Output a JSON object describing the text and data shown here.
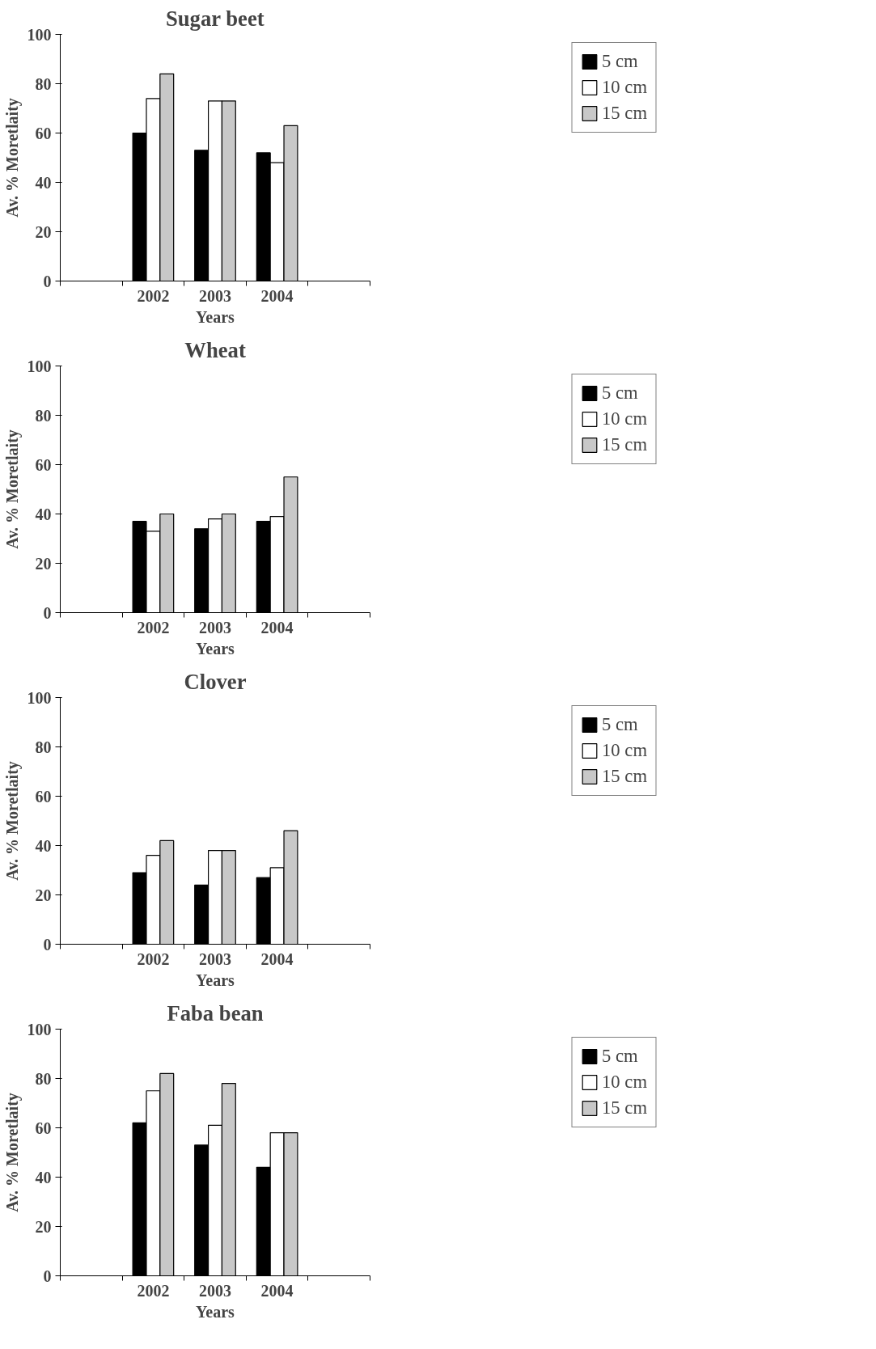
{
  "chart_data": [
    {
      "type": "bar",
      "title": "Sugar beet",
      "xlabel": "Years",
      "ylabel": "Av. % Moretlaity",
      "categories": [
        null,
        "2002",
        "2003",
        "2004",
        null
      ],
      "ylim": [
        0,
        100
      ],
      "yticks": [
        0,
        20,
        40,
        60,
        80,
        100
      ],
      "grid": false,
      "legend": "top right",
      "series": [
        {
          "name": "5 cm",
          "color": "#000000",
          "values": [
            null,
            60,
            53,
            52,
            null
          ]
        },
        {
          "name": "10 cm",
          "color": "#ffffff",
          "values": [
            null,
            74,
            73,
            48,
            null
          ]
        },
        {
          "name": "15 cm",
          "color": "#c8c8c8",
          "values": [
            null,
            84,
            73,
            63,
            null
          ]
        }
      ]
    },
    {
      "type": "bar",
      "title": "Wheat",
      "xlabel": "Years",
      "ylabel": "Av. % Moretlaity",
      "categories": [
        null,
        "2002",
        "2003",
        "2004",
        null
      ],
      "ylim": [
        0,
        100
      ],
      "yticks": [
        0,
        20,
        40,
        60,
        80,
        100
      ],
      "grid": false,
      "legend": "top right",
      "series": [
        {
          "name": "5 cm",
          "color": "#000000",
          "values": [
            null,
            37,
            34,
            37,
            null
          ]
        },
        {
          "name": "10 cm",
          "color": "#ffffff",
          "values": [
            null,
            33,
            38,
            39,
            null
          ]
        },
        {
          "name": "15 cm",
          "color": "#c8c8c8",
          "values": [
            null,
            40,
            40,
            55,
            null
          ]
        }
      ]
    },
    {
      "type": "bar",
      "title": "Clover",
      "xlabel": "Years",
      "ylabel": "Av. % Moretlaity",
      "categories": [
        null,
        "2002",
        "2003",
        "2004",
        null
      ],
      "ylim": [
        0,
        100
      ],
      "yticks": [
        0,
        20,
        40,
        60,
        80,
        100
      ],
      "grid": false,
      "legend": "top right",
      "series": [
        {
          "name": "5 cm",
          "color": "#000000",
          "values": [
            null,
            29,
            24,
            27,
            null
          ]
        },
        {
          "name": "10 cm",
          "color": "#ffffff",
          "values": [
            null,
            36,
            38,
            31,
            null
          ]
        },
        {
          "name": "15 cm",
          "color": "#c8c8c8",
          "values": [
            null,
            42,
            38,
            46,
            null
          ]
        }
      ]
    },
    {
      "type": "bar",
      "title": "Faba bean",
      "xlabel": "Years",
      "ylabel": "Av. % Moretlaity",
      "categories": [
        null,
        "2002",
        "2003",
        "2004",
        null
      ],
      "ylim": [
        0,
        100
      ],
      "yticks": [
        0,
        20,
        40,
        60,
        80,
        100
      ],
      "grid": false,
      "legend": "top right",
      "series": [
        {
          "name": "5 cm",
          "color": "#000000",
          "values": [
            null,
            62,
            53,
            44,
            null
          ]
        },
        {
          "name": "10 cm",
          "color": "#ffffff",
          "values": [
            null,
            75,
            61,
            58,
            null
          ]
        },
        {
          "name": "15 cm",
          "color": "#c8c8c8",
          "values": [
            null,
            82,
            78,
            58,
            null
          ]
        }
      ]
    }
  ]
}
